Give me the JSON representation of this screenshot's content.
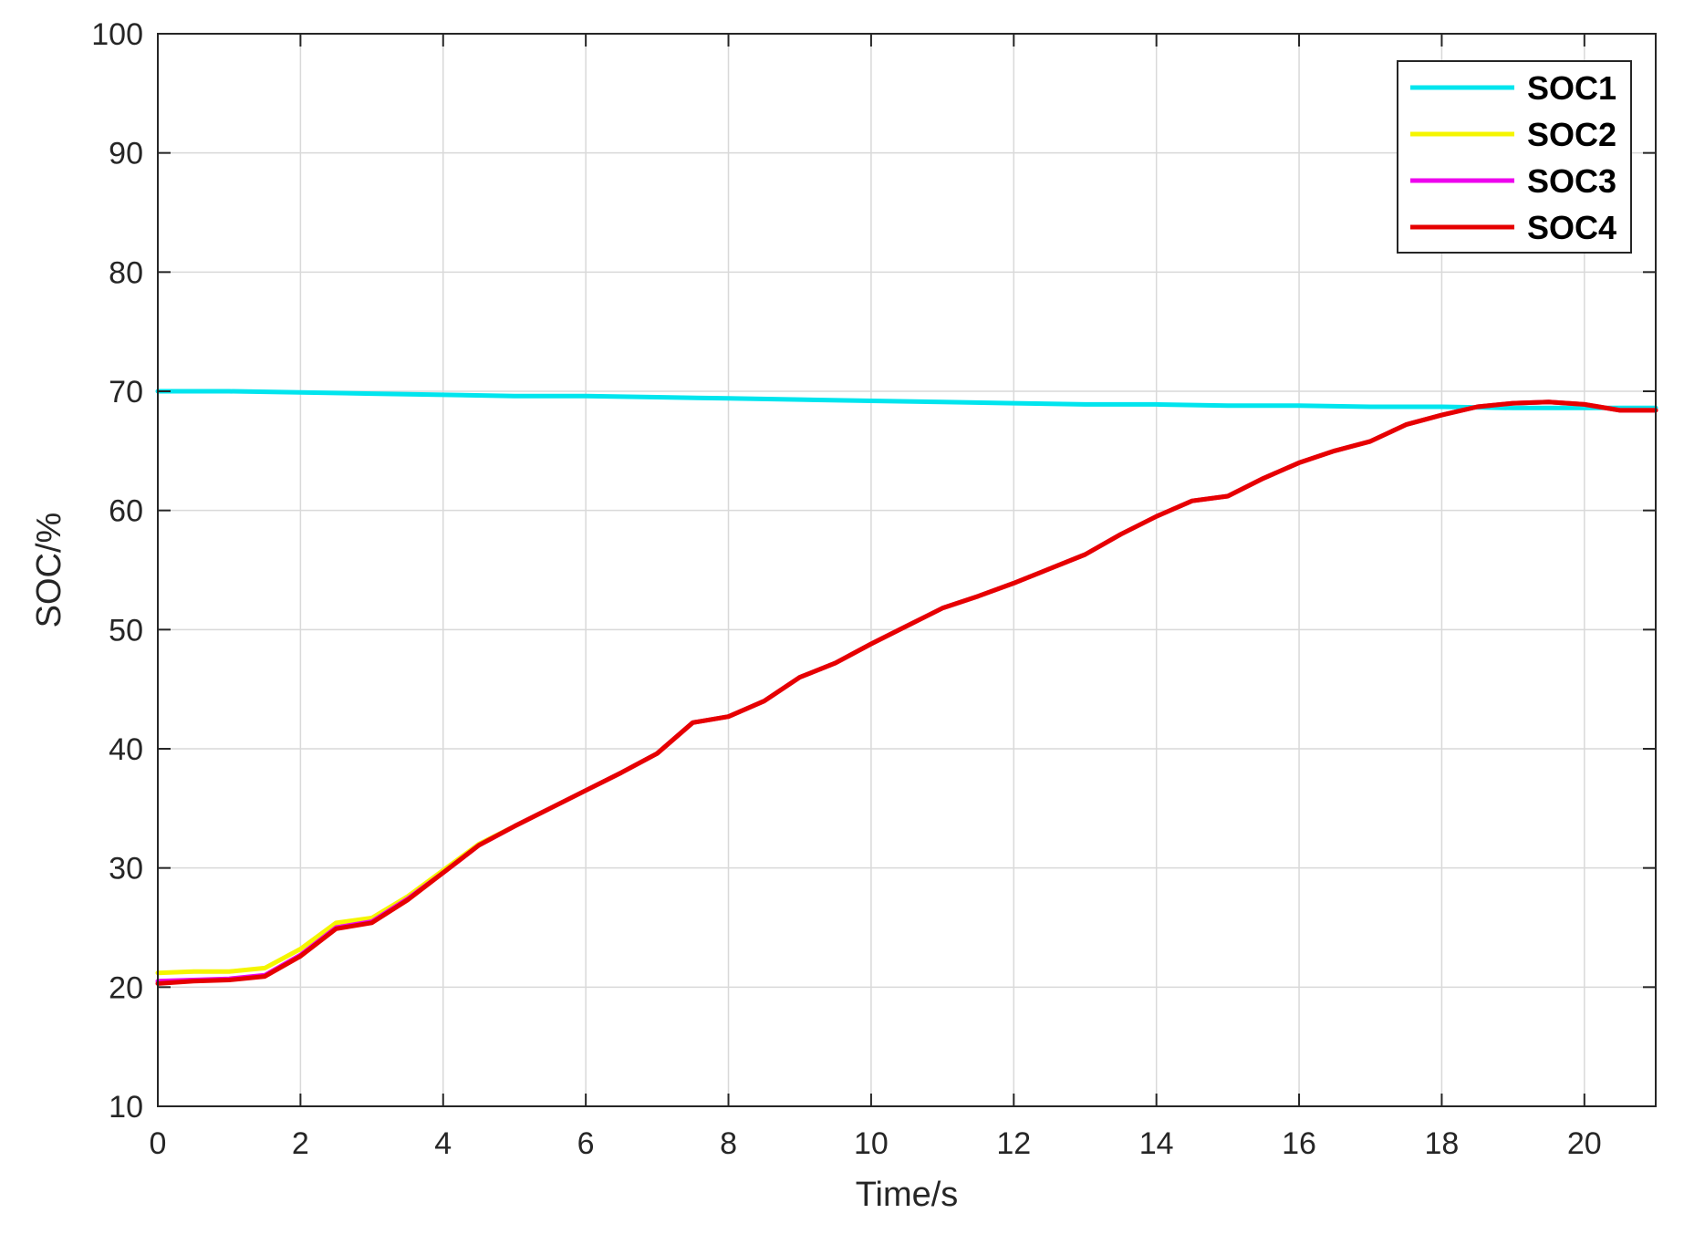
{
  "chart_data": {
    "type": "line",
    "title": "",
    "xlabel": "Time/s",
    "ylabel": "SOC/%",
    "xlim": [
      0,
      21
    ],
    "ylim": [
      10,
      100
    ],
    "xticks": [
      0,
      2,
      4,
      6,
      8,
      10,
      12,
      14,
      16,
      18,
      20
    ],
    "yticks": [
      10,
      20,
      30,
      40,
      50,
      60,
      70,
      80,
      90,
      100
    ],
    "grid": true,
    "legend_position": "top-right",
    "series": [
      {
        "name": "SOC1",
        "color": "#00e5ee",
        "x": [
          0,
          1,
          2,
          3,
          4,
          5,
          6,
          7,
          8,
          9,
          10,
          11,
          12,
          13,
          14,
          15,
          16,
          17,
          18,
          19,
          20,
          21
        ],
        "y": [
          70.0,
          70.0,
          69.9,
          69.8,
          69.7,
          69.6,
          69.6,
          69.5,
          69.4,
          69.3,
          69.2,
          69.1,
          69.0,
          68.9,
          68.9,
          68.8,
          68.8,
          68.7,
          68.7,
          68.6,
          68.6,
          68.6
        ]
      },
      {
        "name": "SOC2",
        "color": "#f5f500",
        "x": [
          0,
          0.5,
          1,
          1.5,
          2,
          2.5,
          3,
          3.5,
          4,
          4.5,
          5,
          5.5,
          6,
          6.5,
          7,
          7.5,
          8,
          8.5,
          9,
          9.5,
          10,
          10.5,
          11,
          11.5,
          12,
          12.5,
          13,
          13.5,
          14,
          14.5,
          15,
          15.5,
          16,
          16.5,
          17,
          17.5,
          18,
          18.5,
          19,
          19.5,
          20,
          20.5,
          21
        ],
        "y": [
          21.2,
          21.3,
          21.3,
          21.6,
          23.2,
          25.4,
          25.8,
          27.6,
          29.8,
          32.0,
          33.5,
          35.0,
          36.5,
          38.0,
          39.6,
          42.2,
          42.7,
          44.0,
          46.0,
          47.2,
          48.8,
          50.3,
          51.8,
          52.8,
          53.9,
          55.1,
          56.3,
          58.0,
          59.5,
          60.8,
          61.2,
          62.7,
          64.0,
          65.0,
          65.8,
          67.2,
          68.0,
          68.7,
          69.0,
          69.1,
          68.9,
          68.4,
          68.4
        ]
      },
      {
        "name": "SOC3",
        "color": "#ee00ee",
        "x": [
          0,
          0.5,
          1,
          1.5,
          2,
          2.5,
          3,
          3.5,
          4,
          4.5,
          5,
          5.5,
          6,
          6.5,
          7,
          7.5,
          8,
          8.5,
          9,
          9.5,
          10,
          10.5,
          11,
          11.5,
          12,
          12.5,
          13,
          13.5,
          14,
          14.5,
          15,
          15.5,
          16,
          16.5,
          17,
          17.5,
          18,
          18.5,
          19,
          19.5,
          20,
          20.5,
          21
        ],
        "y": [
          20.5,
          20.6,
          20.7,
          21.0,
          22.7,
          25.0,
          25.5,
          27.4,
          29.6,
          31.9,
          33.5,
          35.0,
          36.5,
          38.0,
          39.6,
          42.2,
          42.7,
          44.0,
          46.0,
          47.2,
          48.8,
          50.3,
          51.8,
          52.8,
          53.9,
          55.1,
          56.3,
          58.0,
          59.5,
          60.8,
          61.2,
          62.7,
          64.0,
          65.0,
          65.8,
          67.2,
          68.0,
          68.7,
          69.0,
          69.1,
          68.9,
          68.4,
          68.4
        ]
      },
      {
        "name": "SOC4",
        "color": "#e60000",
        "x": [
          0,
          0.5,
          1,
          1.5,
          2,
          2.5,
          3,
          3.5,
          4,
          4.5,
          5,
          5.5,
          6,
          6.5,
          7,
          7.5,
          8,
          8.5,
          9,
          9.5,
          10,
          10.5,
          11,
          11.5,
          12,
          12.5,
          13,
          13.5,
          14,
          14.5,
          15,
          15.5,
          16,
          16.5,
          17,
          17.5,
          18,
          18.5,
          19,
          19.5,
          20,
          20.5,
          21
        ],
        "y": [
          20.3,
          20.5,
          20.6,
          20.9,
          22.6,
          24.9,
          25.4,
          27.3,
          29.6,
          31.9,
          33.5,
          35.0,
          36.5,
          38.0,
          39.6,
          42.2,
          42.7,
          44.0,
          46.0,
          47.2,
          48.8,
          50.3,
          51.8,
          52.8,
          53.9,
          55.1,
          56.3,
          58.0,
          59.5,
          60.8,
          61.2,
          62.7,
          64.0,
          65.0,
          65.8,
          67.2,
          68.0,
          68.7,
          69.0,
          69.1,
          68.9,
          68.4,
          68.4
        ]
      }
    ]
  }
}
